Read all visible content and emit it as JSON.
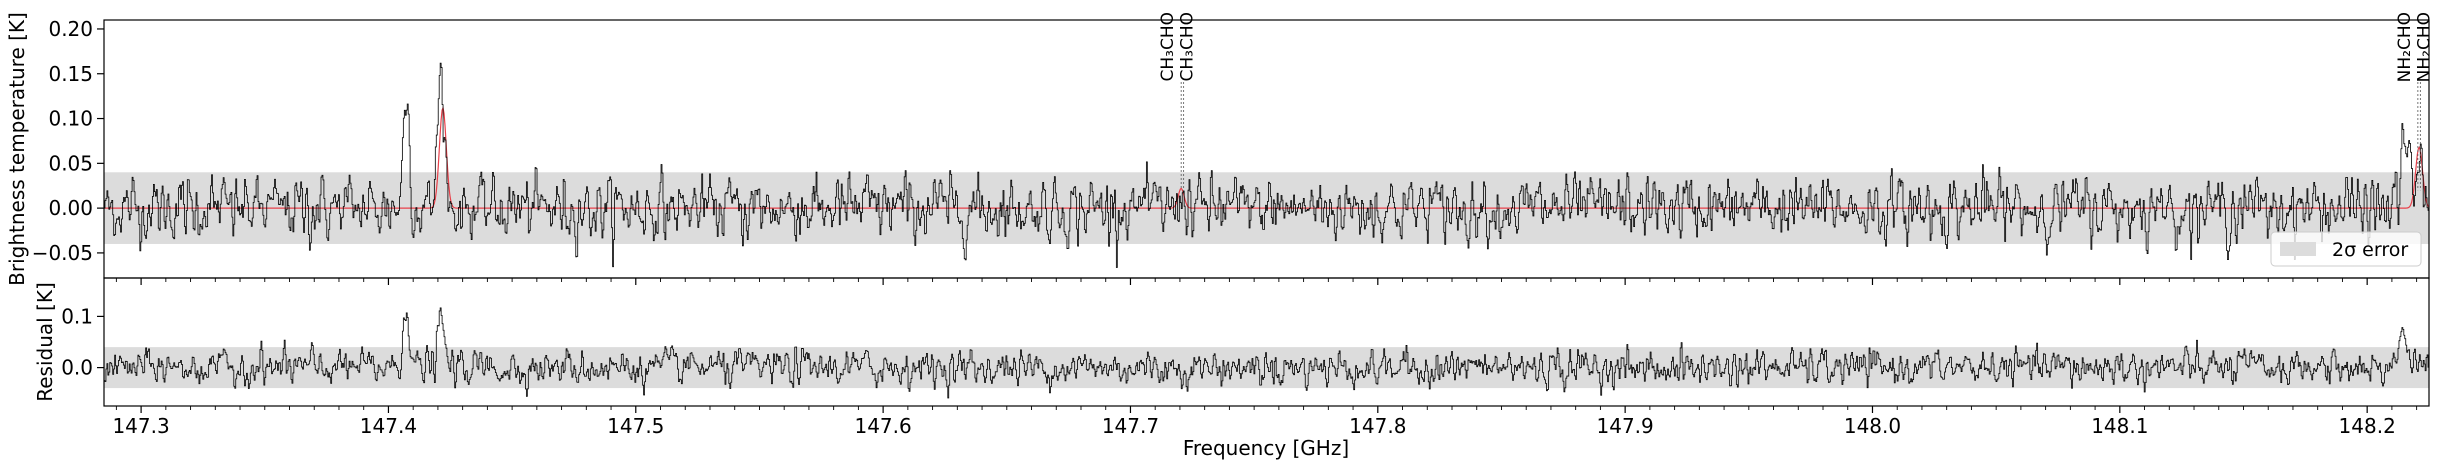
{
  "chart_data": {
    "type": "line",
    "x_range": [
      147.285,
      148.225
    ],
    "xlabel": "Frequency [GHz]",
    "x_ticks": [
      147.3,
      147.4,
      147.5,
      147.6,
      147.7,
      147.8,
      147.9,
      148.0,
      148.1,
      148.2
    ],
    "x_tick_labels": [
      "147.3",
      "147.4",
      "147.5",
      "147.6",
      "147.7",
      "147.8",
      "147.9",
      "148.0",
      "148.1",
      "148.2"
    ],
    "panels": [
      {
        "id": "spectrum",
        "ylabel": "Brightness temperature [K]",
        "ylim": [
          -0.078,
          0.21
        ],
        "y_ticks": [
          -0.05,
          0.0,
          0.05,
          0.1,
          0.15,
          0.2
        ],
        "y_tick_labels": [
          "−0.05",
          "0.00",
          "0.05",
          "0.10",
          "0.15",
          "0.20"
        ],
        "error_band": [
          -0.04,
          0.04
        ],
        "series": [
          {
            "kind": "observed",
            "color": "#000000",
            "noise_rms": 0.02,
            "features": [
              {
                "x": 147.407,
                "height": 0.13,
                "sigma": 0.0012
              },
              {
                "x": 147.421,
                "height": 0.15,
                "sigma": 0.0014
              },
              {
                "x": 147.721,
                "height": 0.02,
                "sigma": 0.001
              },
              {
                "x": 148.215,
                "height": 0.075,
                "sigma": 0.0018
              },
              {
                "x": 148.221,
                "height": 0.05,
                "sigma": 0.0012
              }
            ]
          },
          {
            "kind": "model",
            "color": "#e8404a",
            "features": [
              {
                "x": 147.422,
                "height": 0.112,
                "sigma": 0.0014
              },
              {
                "x": 147.7205,
                "height": 0.022,
                "sigma": 0.0012
              },
              {
                "x": 148.221,
                "height": 0.068,
                "sigma": 0.0014
              }
            ]
          }
        ],
        "annotations": [
          {
            "x": 147.7205,
            "label": "CH₃CHO"
          },
          {
            "x": 147.7215,
            "label": "CH₃CHO"
          },
          {
            "x": 148.2205,
            "label": "NH₂CHO"
          },
          {
            "x": 148.2215,
            "label": "NH₂CHO"
          }
        ],
        "legend": {
          "position": "bottom-right",
          "label": "2σ error",
          "color": "#dcdcdc"
        }
      },
      {
        "id": "residual",
        "ylabel": "Residual [K]",
        "ylim": [
          -0.075,
          0.175
        ],
        "y_ticks": [
          0.0,
          0.1
        ],
        "y_tick_labels": [
          "0.0",
          "0.1"
        ],
        "error_band": [
          -0.04,
          0.04
        ],
        "series": [
          {
            "kind": "residual",
            "color": "#000000",
            "noise_rms": 0.02,
            "features": [
              {
                "x": 147.407,
                "height": 0.13,
                "sigma": 0.0012
              },
              {
                "x": 147.421,
                "height": 0.09,
                "sigma": 0.0014
              },
              {
                "x": 148.214,
                "height": 0.075,
                "sigma": 0.0018
              }
            ]
          }
        ]
      }
    ]
  }
}
